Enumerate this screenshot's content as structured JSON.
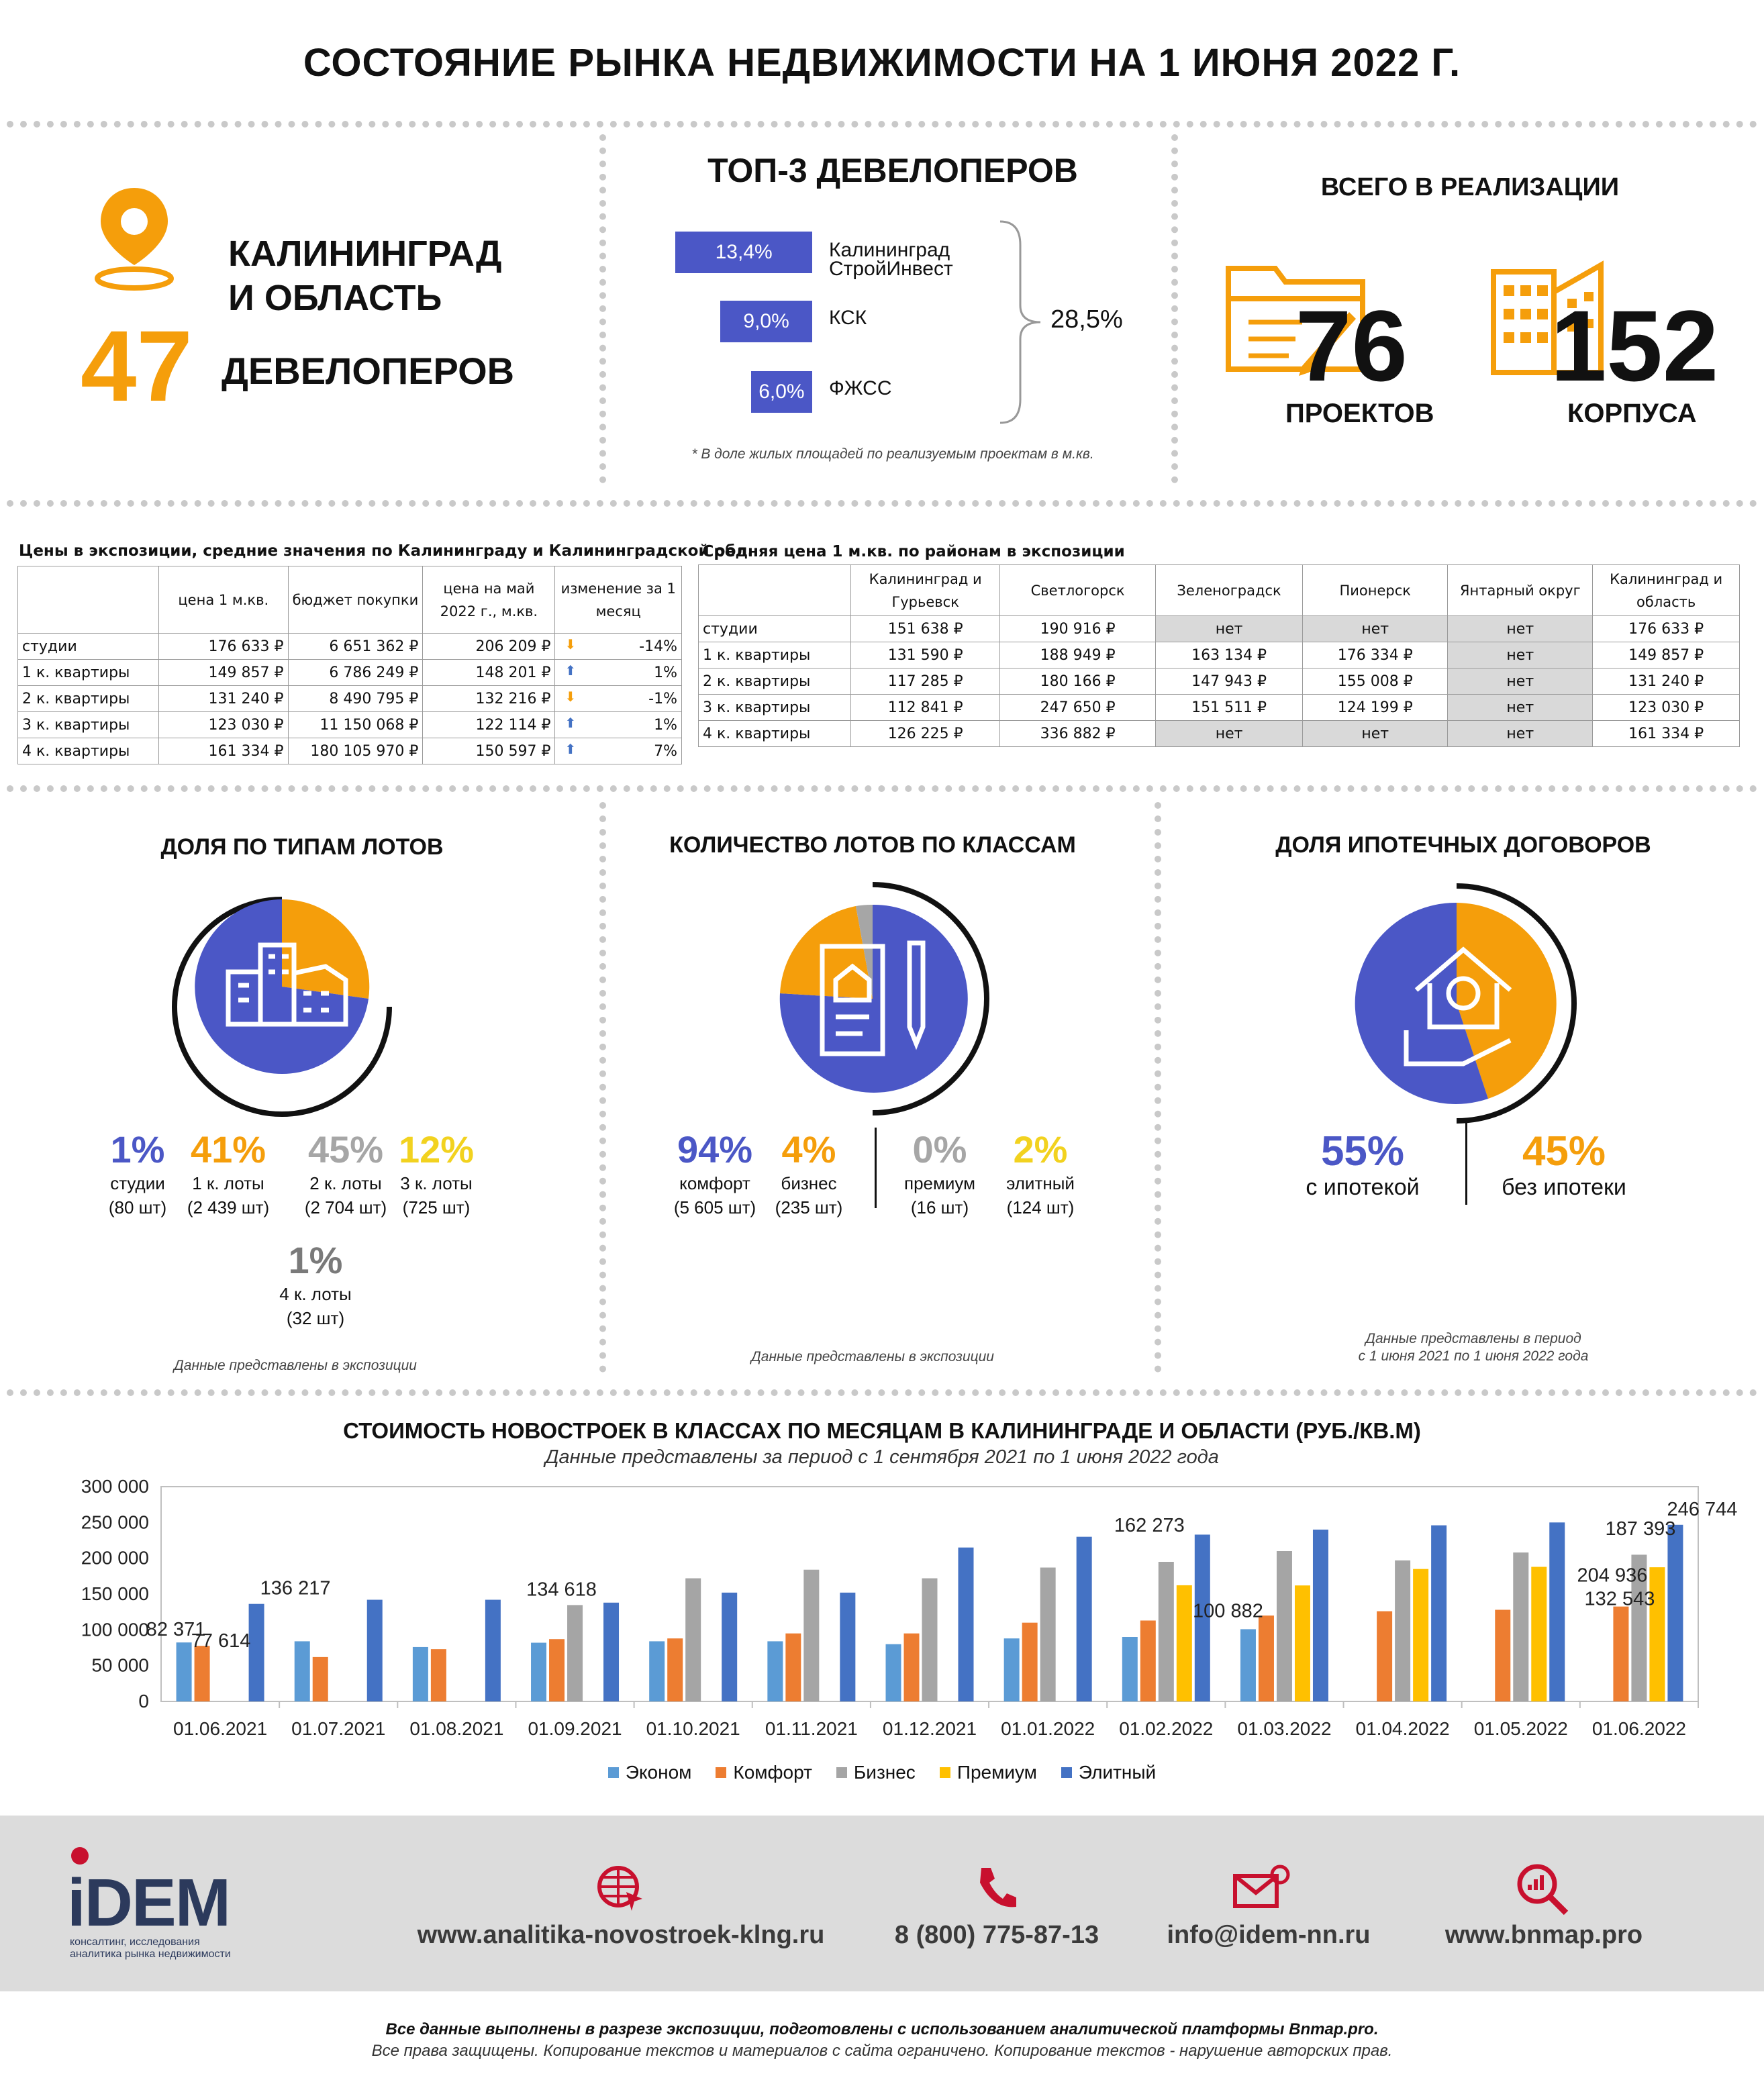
{
  "page_title": "СОСТОЯНИЕ РЫНКА НЕДВИЖИМОСТИ НА 1 ИЮНЯ 2022 Г.",
  "region": {
    "line1": "КАЛИНИНГРАД",
    "line2": "И ОБЛАСТЬ",
    "developers_count": "47",
    "developers_label": "ДЕВЕЛОПЕРОВ"
  },
  "top3": {
    "title": "ТОП-3 ДЕВЕЛОПЕРОВ",
    "items": [
      {
        "share": "13,4%",
        "value": 13.4,
        "name1": "Калининград",
        "name2": "СтройИнвест"
      },
      {
        "share": "9,0%",
        "value": 9.0,
        "name1": "КСК",
        "name2": ""
      },
      {
        "share": "6,0%",
        "value": 6.0,
        "name1": "ФЖСС",
        "name2": ""
      }
    ],
    "total": "28,5%",
    "note": "* В доле жилых площадей по реализуемым проектам в м.кв."
  },
  "totals": {
    "title": "ВСЕГО В РЕАЛИЗАЦИИ",
    "projects": "76",
    "projects_label": "ПРОЕКТОВ",
    "buildings": "152",
    "buildings_label": "КОРПУСА"
  },
  "table1": {
    "title": "Цены в экспозиции, средние значения по Калининграду и Калининградской обл.",
    "headers": [
      "",
      "цена 1 м.кв.",
      "бюджет покупки",
      "цена на май 2022 г., м.кв.",
      "изменение за 1 месяц"
    ],
    "rows": [
      {
        "type": "студии",
        "price": "176 633 ₽",
        "budget": "6 651 362 ₽",
        "may": "206 209 ₽",
        "dir": "down",
        "change": "-14%"
      },
      {
        "type": "1 к. квартиры",
        "price": "149 857 ₽",
        "budget": "6 786 249 ₽",
        "may": "148 201 ₽",
        "dir": "up",
        "change": "1%"
      },
      {
        "type": "2 к. квартиры",
        "price": "131 240 ₽",
        "budget": "8 490 795 ₽",
        "may": "132 216 ₽",
        "dir": "down",
        "change": "-1%"
      },
      {
        "type": "3 к. квартиры",
        "price": "123 030 ₽",
        "budget": "11 150 068 ₽",
        "may": "122 114 ₽",
        "dir": "up",
        "change": "1%"
      },
      {
        "type": "4 к. квартиры",
        "price": "161 334 ₽",
        "budget": "180 105 970 ₽",
        "may": "150 597 ₽",
        "dir": "up",
        "change": "7%"
      }
    ]
  },
  "table2": {
    "title": "Средняя цена 1 м.кв. по районам в экспозиции",
    "headers": [
      "",
      "Калининград и Гурьевск",
      "Светлогорск",
      "Зеленоградск",
      "Пионерск",
      "Янтарный округ",
      "Калининград и область"
    ],
    "rows": [
      [
        "студии",
        "151 638 ₽",
        "190 916 ₽",
        "нет",
        "нет",
        "нет",
        "176 633 ₽"
      ],
      [
        "1 к. квартиры",
        "131 590 ₽",
        "188 949 ₽",
        "163 134 ₽",
        "176 334 ₽",
        "нет",
        "149 857 ₽"
      ],
      [
        "2 к. квартиры",
        "117 285 ₽",
        "180 166 ₽",
        "147 943 ₽",
        "155 008 ₽",
        "нет",
        "131 240 ₽"
      ],
      [
        "3 к. квартиры",
        "112 841 ₽",
        "247 650 ₽",
        "151 511 ₽",
        "124 199 ₽",
        "нет",
        "123 030 ₽"
      ],
      [
        "4 к. квартиры",
        "126 225 ₽",
        "336 882 ₽",
        "нет",
        "нет",
        "нет",
        "161 334 ₽"
      ]
    ]
  },
  "lots_types": {
    "title": "ДОЛЯ ПО ТИПАМ ЛОТОВ",
    "items": [
      {
        "pct": "1%",
        "label": "студии",
        "count": "(80 шт)",
        "color": "#4b57c6"
      },
      {
        "pct": "41%",
        "label": "1 к. лоты",
        "count": "(2 439 шт)",
        "color": "#f59e0b"
      },
      {
        "pct": "45%",
        "label": "2 к. лоты",
        "count": "(2 704 шт)",
        "color": "#a6a6a6"
      },
      {
        "pct": "12%",
        "label": "3 к. лоты",
        "count": "(725 шт)",
        "color": "#f2d21f"
      },
      {
        "pct": "1%",
        "label": "4 к. лоты",
        "count": "(32 шт)",
        "color": "#7a7a7a"
      }
    ],
    "note": "Данные представлены в экспозиции"
  },
  "lots_classes": {
    "title": "КОЛИЧЕСТВО ЛОТОВ ПО КЛАССАМ",
    "items": [
      {
        "pct": "94%",
        "label": "комфорт",
        "count": "(5 605 шт)",
        "color": "#4b57c6"
      },
      {
        "pct": "4%",
        "label": "бизнес",
        "count": "(235 шт)",
        "color": "#f59e0b"
      },
      {
        "pct": "0%",
        "label": "премиум",
        "count": "(16 шт)",
        "color": "#a6a6a6"
      },
      {
        "pct": "2%",
        "label": "элитный",
        "count": "(124 шт)",
        "color": "#f2d21f"
      }
    ],
    "note": "Данные представлены в экспозиции"
  },
  "mortgage": {
    "title": "ДОЛЯ ИПОТЕЧНЫХ ДОГОВОРОВ",
    "items": [
      {
        "pct": "55%",
        "label": "с ипотекой",
        "color": "#4b57c6"
      },
      {
        "pct": "45%",
        "label": "без ипотеки",
        "color": "#f59e0b"
      }
    ],
    "note1": "Данные представлены в период",
    "note2": "с 1 июня 2021 по 1 июня 2022 года"
  },
  "chart_data": {
    "type": "bar",
    "title": "СТОИМОСТЬ  НОВОСТРОЕК В КЛАССАХ ПО МЕСЯЦАМ В КАЛИНИНГРАДЕ И ОБЛАСТИ (РУБ./КВ.М)",
    "subtitle": "Данные представлены за период с 1 сентября 2021 по 1 июня 2022 года",
    "categories": [
      "01.06.2021",
      "01.07.2021",
      "01.08.2021",
      "01.09.2021",
      "01.10.2021",
      "01.11.2021",
      "01.12.2021",
      "01.01.2022",
      "01.02.2022",
      "01.03.2022",
      "01.04.2022",
      "01.05.2022",
      "01.06.2022"
    ],
    "ylim": [
      0,
      300000
    ],
    "yticks": [
      "0",
      "50 000",
      "100 000",
      "150 000",
      "200 000",
      "250 000",
      "300 000"
    ],
    "grid": false,
    "legend_position": "bottom",
    "series": [
      {
        "name": "Эконом",
        "color": "#5b9bd5",
        "values": [
          82371,
          84000,
          76000,
          82000,
          84000,
          84000,
          80000,
          88000,
          90000,
          100882,
          null,
          null,
          null
        ]
      },
      {
        "name": "Комфорт",
        "color": "#ed7d31",
        "values": [
          77614,
          62000,
          73000,
          87000,
          88000,
          95000,
          95000,
          110000,
          113000,
          120000,
          126000,
          128000,
          132543
        ]
      },
      {
        "name": "Бизнес",
        "color": "#a5a5a5",
        "values": [
          null,
          null,
          null,
          134618,
          172000,
          184000,
          172000,
          187000,
          195000,
          210000,
          197000,
          208000,
          204936
        ]
      },
      {
        "name": "Премиум",
        "color": "#ffc000",
        "values": [
          null,
          null,
          null,
          null,
          null,
          null,
          null,
          null,
          162273,
          162000,
          185000,
          188000,
          187393
        ]
      },
      {
        "name": "Элитный",
        "color": "#4472c4",
        "values": [
          136217,
          142000,
          142000,
          138000,
          152000,
          152000,
          215000,
          230000,
          233000,
          240000,
          246000,
          250000,
          246744
        ]
      }
    ],
    "data_labels": [
      {
        "text": "82 371",
        "series": 0,
        "index": 0
      },
      {
        "text": "77 614",
        "series": 1,
        "index": 0
      },
      {
        "text": "136 217",
        "series": 4,
        "index": 0
      },
      {
        "text": "134 618",
        "series": 2,
        "index": 3
      },
      {
        "text": "162 273",
        "series": 3,
        "index": 8
      },
      {
        "text": "100 882",
        "series": 0,
        "index": 9
      },
      {
        "text": "246 744",
        "series": 4,
        "index": 12
      },
      {
        "text": "187 393",
        "series": 3,
        "index": 12
      },
      {
        "text": "204 936",
        "series": 2,
        "index": 12
      },
      {
        "text": "132 543",
        "series": 1,
        "index": 12
      }
    ]
  },
  "footer": {
    "logo": "iDEM",
    "logo_sub1": "консалтинг, исследования",
    "logo_sub2": "аналитика рынка недвижимости",
    "site": "www.analitika-novostroek-klng.ru",
    "phone": "8 (800) 775-87-13",
    "email": "info@idem-nn.ru",
    "site2": "www.bnmap.pro",
    "brand_color": "#c8102e",
    "disclaimer1": "Все данные выполнены в разрезе экспозиции, подготовлены с использованием аналитической платформы Bnmap.pro.",
    "disclaimer2": "Все права защищены. Копирование текстов и материалов с сайта ограничено. Копирование текстов - нарушение авторских прав."
  },
  "icons": [
    "location-pin-icon",
    "folder-pen-icon",
    "buildings-icon",
    "house-document-icon",
    "house-hand-icon",
    "globe-cursor-icon",
    "phone-icon",
    "mail-icon",
    "search-chart-icon"
  ]
}
